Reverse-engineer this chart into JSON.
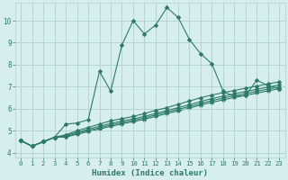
{
  "xlabel": "Humidex (Indice chaleur)",
  "bg_color": "#d6eeee",
  "grid_color": "#b0d0d0",
  "line_color": "#2d7a6a",
  "xlim": [
    -0.5,
    23.5
  ],
  "ylim": [
    3.8,
    10.8
  ],
  "xticks": [
    0,
    1,
    2,
    3,
    4,
    5,
    6,
    7,
    8,
    9,
    10,
    11,
    12,
    13,
    14,
    15,
    16,
    17,
    18,
    19,
    20,
    21,
    22,
    23
  ],
  "yticks": [
    4,
    5,
    6,
    7,
    8,
    9,
    10
  ],
  "line1_x": [
    0,
    1,
    2,
    3,
    4,
    5,
    6,
    7,
    8,
    9,
    10,
    11,
    12,
    13,
    14,
    15,
    16,
    17,
    18,
    19,
    20,
    21,
    22,
    23
  ],
  "line1_y": [
    4.55,
    4.3,
    4.5,
    4.7,
    5.3,
    5.35,
    5.5,
    7.7,
    6.8,
    8.9,
    10.0,
    9.4,
    9.8,
    10.6,
    10.15,
    9.15,
    8.5,
    8.05,
    6.8,
    6.55,
    6.6,
    7.3,
    7.05,
    6.9
  ],
  "line2_x": [
    0,
    1,
    2,
    3,
    4,
    5,
    6,
    7,
    8,
    9,
    10,
    11,
    12,
    13,
    14,
    15,
    16,
    17,
    18,
    19,
    20,
    21,
    22,
    23
  ],
  "line2_y": [
    4.55,
    4.3,
    4.5,
    4.7,
    4.82,
    5.0,
    5.15,
    5.3,
    5.45,
    5.55,
    5.65,
    5.78,
    5.93,
    6.05,
    6.2,
    6.35,
    6.5,
    6.62,
    6.73,
    6.83,
    6.93,
    7.03,
    7.13,
    7.22
  ],
  "line3_x": [
    0,
    1,
    2,
    3,
    4,
    5,
    6,
    7,
    8,
    9,
    10,
    11,
    12,
    13,
    14,
    15,
    16,
    17,
    18,
    19,
    20,
    21,
    22,
    23
  ],
  "line3_y": [
    4.55,
    4.3,
    4.5,
    4.7,
    4.78,
    4.93,
    5.07,
    5.2,
    5.33,
    5.44,
    5.54,
    5.65,
    5.79,
    5.92,
    6.05,
    6.18,
    6.33,
    6.46,
    6.57,
    6.68,
    6.78,
    6.88,
    6.98,
    7.08
  ],
  "line4_x": [
    0,
    1,
    2,
    3,
    4,
    5,
    6,
    7,
    8,
    9,
    10,
    11,
    12,
    13,
    14,
    15,
    16,
    17,
    18,
    19,
    20,
    21,
    22,
    23
  ],
  "line4_y": [
    4.55,
    4.3,
    4.5,
    4.7,
    4.74,
    4.88,
    5.01,
    5.13,
    5.26,
    5.37,
    5.47,
    5.58,
    5.72,
    5.85,
    5.97,
    6.1,
    6.24,
    6.37,
    6.48,
    6.59,
    6.69,
    6.79,
    6.89,
    6.99
  ],
  "line5_x": [
    0,
    1,
    2,
    3,
    4,
    5,
    6,
    7,
    8,
    9,
    10,
    11,
    12,
    13,
    14,
    15,
    16,
    17,
    18,
    19,
    20,
    21,
    22,
    23
  ],
  "line5_y": [
    4.55,
    4.3,
    4.5,
    4.7,
    4.71,
    4.84,
    4.96,
    5.08,
    5.2,
    5.31,
    5.41,
    5.52,
    5.65,
    5.78,
    5.9,
    6.03,
    6.17,
    6.29,
    6.4,
    6.51,
    6.61,
    6.71,
    6.81,
    6.91
  ]
}
